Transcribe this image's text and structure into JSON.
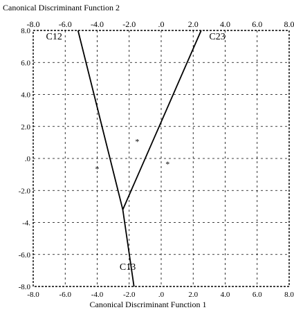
{
  "chart_data": {
    "type": "territorial map",
    "title": "Canonical Discriminant Function 2",
    "xlabel": "Canonical Discriminant Function 1",
    "xlim": [
      -8,
      8
    ],
    "ylim": [
      -8,
      8
    ],
    "top_tick_labels": [
      "-8.0",
      "-6.0",
      "-4.0",
      "-2.0",
      ".0",
      "2.0",
      "4.0",
      "6.0",
      "8.0"
    ],
    "bottom_tick_labels": [
      "-8.0",
      "-6.0",
      "-4.0",
      "-2.0",
      ".0",
      "2.0",
      "4.0",
      "6.0",
      "8.0"
    ],
    "left_ticks": [
      {
        "y": 8,
        "label": "8.0"
      },
      {
        "y": 6,
        "label": "6.0"
      },
      {
        "y": 4,
        "label": "4.0"
      },
      {
        "y": 2,
        "label": "2.0"
      },
      {
        "y": 0,
        "label": ".0"
      },
      {
        "y": -2,
        "label": "-2.0"
      },
      {
        "y": -4,
        "label": "-4."
      },
      {
        "y": -6,
        "label": "-6.0"
      },
      {
        "y": -8,
        "label": "-8.0"
      }
    ],
    "grid": true,
    "boundaries": [
      {
        "points": [
          [
            -5.2,
            8
          ],
          [
            -2.4,
            -3.2
          ]
        ]
      },
      {
        "points": [
          [
            2.5,
            8
          ],
          [
            -2.4,
            -3.2
          ]
        ]
      },
      {
        "points": [
          [
            -2.4,
            -3.2
          ],
          [
            -1.7,
            -8
          ]
        ]
      }
    ],
    "region_labels": [
      {
        "text": "C12",
        "x": -7.2,
        "y": 7.7
      },
      {
        "text": "C23",
        "x": 3.0,
        "y": 7.7
      },
      {
        "text": "C13",
        "x": -2.6,
        "y": -6.7
      }
    ],
    "centroids": [
      {
        "x": -1.5,
        "y": 1.1
      },
      {
        "x": -4.0,
        "y": -0.6
      },
      {
        "x": 0.4,
        "y": -0.3
      }
    ],
    "centroid_marker": "*"
  }
}
